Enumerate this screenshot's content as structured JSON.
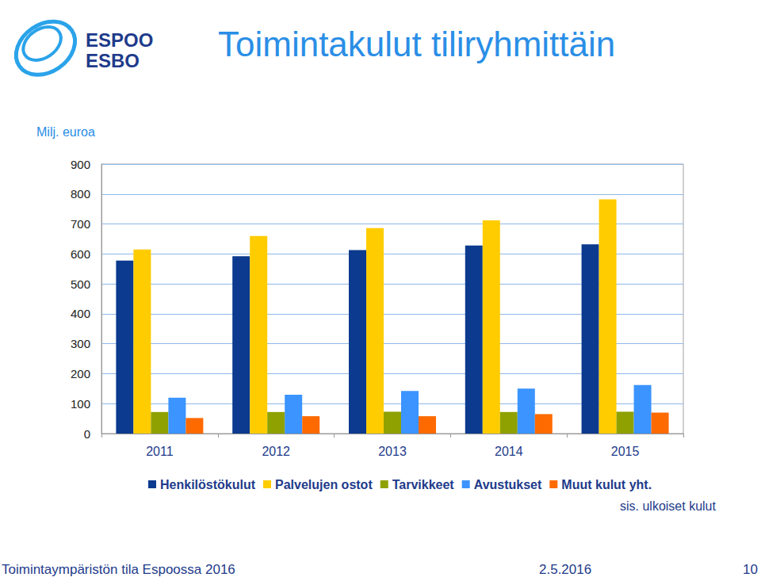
{
  "chart_data": {
    "type": "bar",
    "title": "Toimintakulut tiliryhmittäin",
    "ylabel": "Milj. euroa",
    "categories": [
      "2011",
      "2012",
      "2013",
      "2014",
      "2015"
    ],
    "series": [
      {
        "name": "Henkilöstökulut",
        "color": "#0b3a8e",
        "values": [
          578,
          592,
          613,
          628,
          632
        ]
      },
      {
        "name": "Palvelujen ostot",
        "color": "#ffcc00",
        "values": [
          615,
          660,
          686,
          712,
          782
        ]
      },
      {
        "name": "Tarvikkeet",
        "color": "#8fa100",
        "values": [
          72,
          72,
          73,
          72,
          73
        ]
      },
      {
        "name": "Avustukset",
        "color": "#3b94ff",
        "values": [
          120,
          130,
          142,
          150,
          162
        ]
      },
      {
        "name": "Muut kulut yht.",
        "color": "#ff6a00",
        "values": [
          52,
          58,
          58,
          65,
          70
        ]
      }
    ],
    "ylim": [
      0,
      900
    ],
    "yticks": [
      0,
      100,
      200,
      300,
      400,
      500,
      600,
      700,
      800,
      900
    ],
    "grid": true,
    "legend": "bottom",
    "annotations": [
      "sis. ulkoiset kulut"
    ],
    "logo": [
      "ESPOO",
      "ESBO"
    ],
    "footer": [
      "Toimintaympäristön tila Espoossa 2016",
      "2.5.2016",
      "10"
    ]
  }
}
